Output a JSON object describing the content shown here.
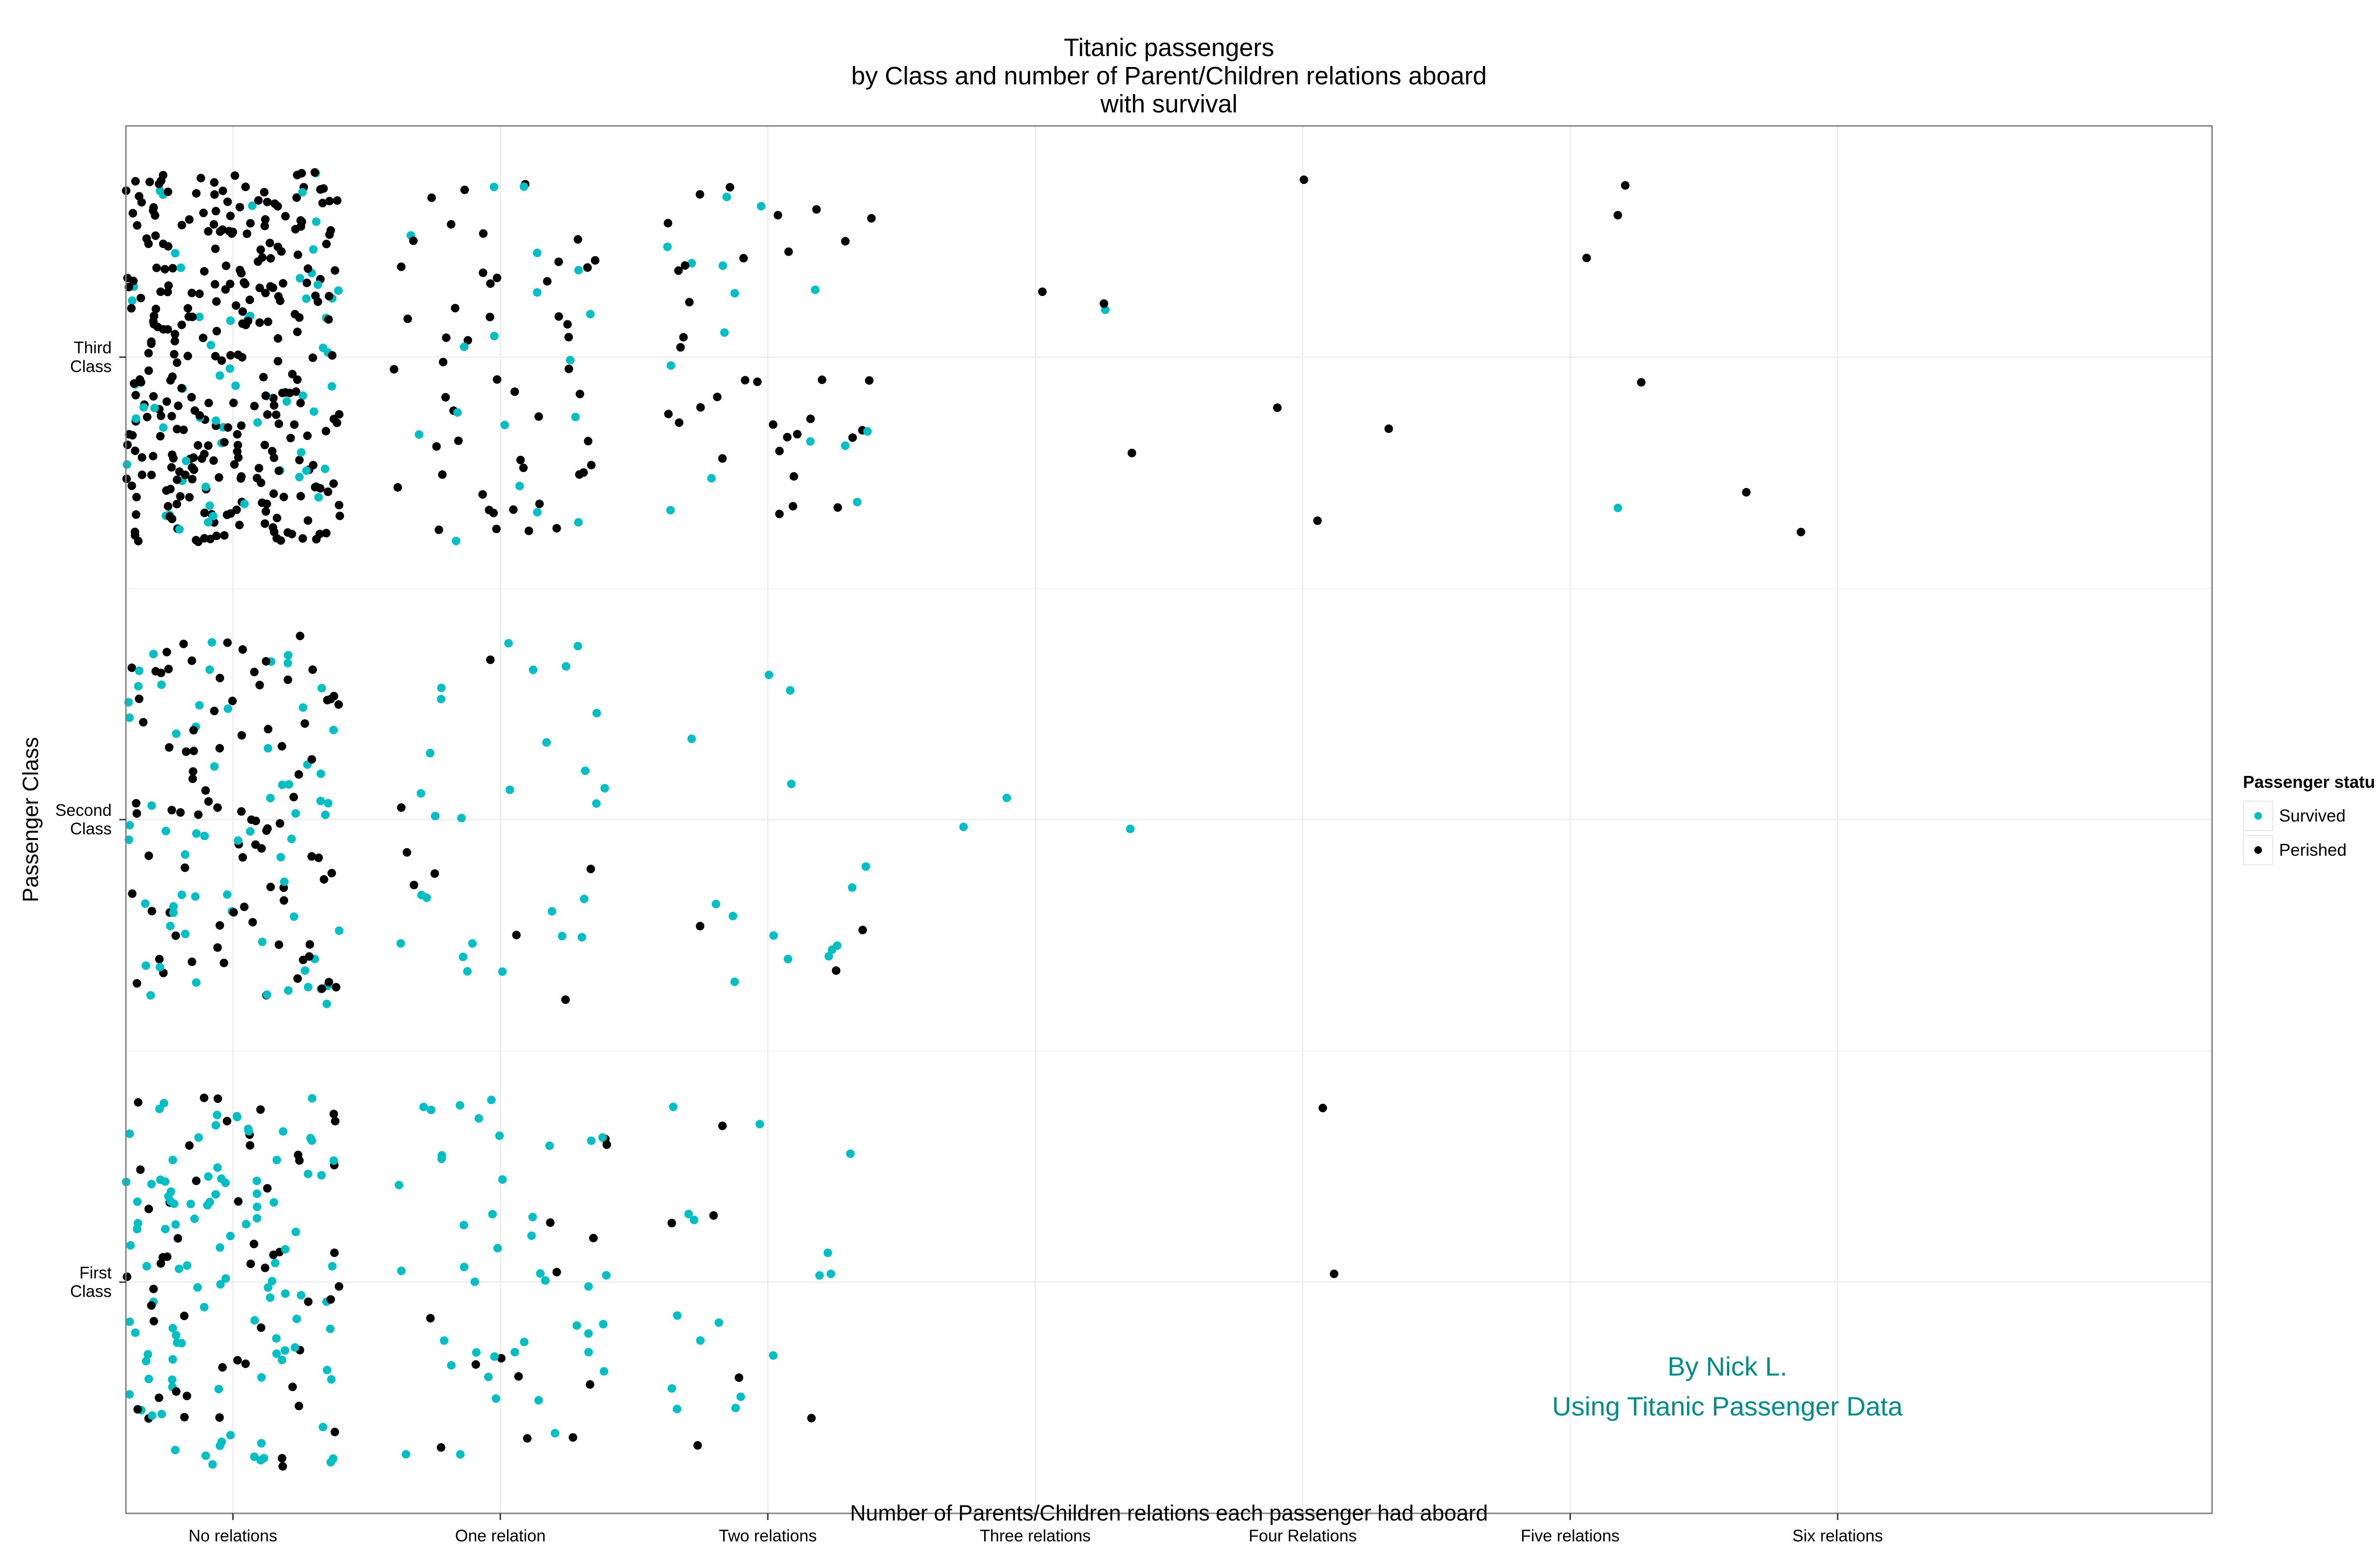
{
  "chart_data": {
    "type": "scatter",
    "jitter": true,
    "title": "Titanic passengers\nby Class and number of Parent/Children relations aboard\nwith survival",
    "xlabel": "Number of Parents/Children relations each passenger had aboard",
    "ylabel": "Passenger Class",
    "x_categories": [
      "No relations",
      "One relation",
      "Two relations",
      "Three relations",
      "Four Relations",
      "Five relations",
      "Six relations"
    ],
    "y_categories": [
      "First\nClass",
      "Second\nClass",
      "Third\nClass"
    ],
    "grid": true,
    "legend": {
      "title": "Passenger status",
      "position": "right"
    },
    "series": [
      {
        "name": "Survived",
        "color": "#00bfc4",
        "counts": [
          [
            109,
            42,
            16,
            0,
            0,
            0,
            0
          ],
          [
            65,
            27,
            14,
            3,
            0,
            0,
            0
          ],
          [
            61,
            18,
            15,
            1,
            0,
            1,
            0
          ]
        ]
      },
      {
        "name": "Perished",
        "color": "#000000",
        "counts": [
          [
            54,
            13,
            6,
            0,
            2,
            0,
            0
          ],
          [
            88,
            8,
            3,
            0,
            0,
            0,
            0
          ],
          [
            306,
            51,
            34,
            3,
            4,
            4,
            2
          ]
        ]
      }
    ],
    "annotation": [
      "By Nick L.",
      "Using Titanic Passenger Data"
    ],
    "annotation_color": "#008b8b"
  }
}
